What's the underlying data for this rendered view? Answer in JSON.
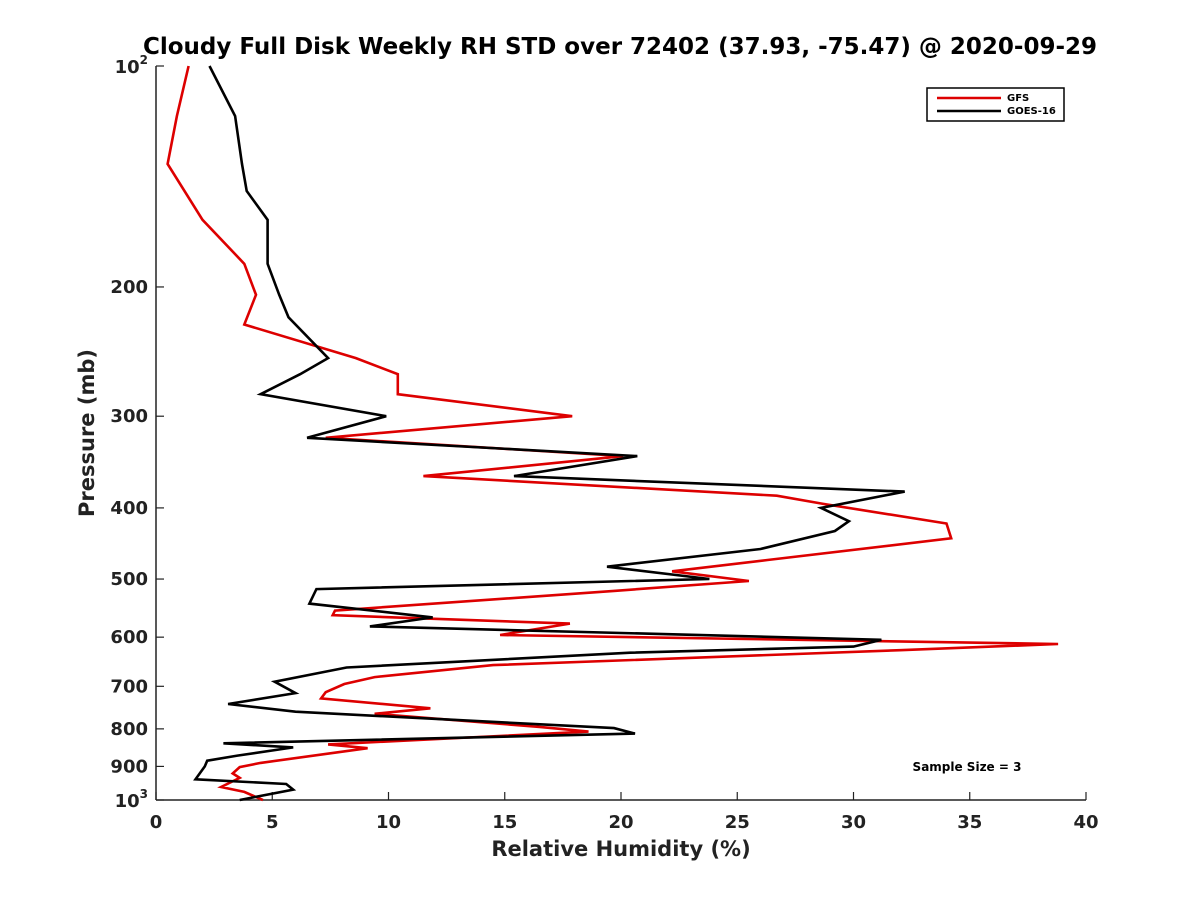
{
  "chart_data": {
    "type": "line",
    "title": "Cloudy Full Disk Weekly RH STD over 72402 (37.93, -75.47) @ 2020-09-29",
    "xlabel": "Relative Humidity (%)",
    "ylabel": "Pressure (mb)",
    "xlim": [
      0,
      40
    ],
    "ylim": [
      100,
      1000
    ],
    "yscale": "log",
    "yreversed": true,
    "x_ticks": [
      "0",
      "5",
      "10",
      "15",
      "20",
      "25",
      "30",
      "35",
      "40"
    ],
    "y_ticks": [
      {
        "value": 100,
        "label": "10",
        "sup": "2"
      },
      {
        "value": 200,
        "label": "200",
        "sup": ""
      },
      {
        "value": 300,
        "label": "300",
        "sup": ""
      },
      {
        "value": 400,
        "label": "400",
        "sup": ""
      },
      {
        "value": 500,
        "label": "500",
        "sup": ""
      },
      {
        "value": 600,
        "label": "600",
        "sup": ""
      },
      {
        "value": 700,
        "label": "700",
        "sup": ""
      },
      {
        "value": 800,
        "label": "800",
        "sup": ""
      },
      {
        "value": 900,
        "label": "900",
        "sup": ""
      },
      {
        "value": 1000,
        "label": "10",
        "sup": "3"
      }
    ],
    "grid": false,
    "legend_position": "top-right",
    "annotation": "Sample Size = 3",
    "series": [
      {
        "name": "GFS",
        "color": "#dd0000",
        "points": [
          [
            1.4,
            100
          ],
          [
            0.9,
            117
          ],
          [
            0.5,
            136
          ],
          [
            2.0,
            162
          ],
          [
            3.8,
            186
          ],
          [
            4.3,
            205
          ],
          [
            3.8,
            225
          ],
          [
            8.6,
            250
          ],
          [
            10.4,
            263
          ],
          [
            10.4,
            280
          ],
          [
            17.9,
            300
          ],
          [
            7.3,
            321
          ],
          [
            20.1,
            340
          ],
          [
            11.5,
            362
          ],
          [
            26.7,
            385
          ],
          [
            28.7,
            395
          ],
          [
            34.0,
            420
          ],
          [
            34.2,
            440
          ],
          [
            26.3,
            471
          ],
          [
            22.2,
            488
          ],
          [
            25.5,
            503
          ],
          [
            19.7,
            519
          ],
          [
            7.7,
            552
          ],
          [
            7.6,
            560
          ],
          [
            17.8,
            575
          ],
          [
            14.8,
            596
          ],
          [
            38.8,
            613
          ],
          [
            32.0,
            625
          ],
          [
            14.5,
            655
          ],
          [
            9.4,
            680
          ],
          [
            8.1,
            695
          ],
          [
            7.3,
            713
          ],
          [
            7.1,
            727
          ],
          [
            11.8,
            750
          ],
          [
            9.4,
            763
          ],
          [
            16.5,
            795
          ],
          [
            18.6,
            807
          ],
          [
            7.4,
            840
          ],
          [
            9.1,
            850
          ],
          [
            4.5,
            890
          ],
          [
            3.6,
            902
          ],
          [
            3.3,
            920
          ],
          [
            3.6,
            933
          ],
          [
            2.8,
            960
          ],
          [
            3.8,
            975
          ],
          [
            4.6,
            1000
          ]
        ]
      },
      {
        "name": "GOES-16",
        "color": "#000000",
        "points": [
          [
            2.3,
            100
          ],
          [
            3.4,
            117
          ],
          [
            3.7,
            136
          ],
          [
            3.9,
            148
          ],
          [
            4.8,
            162
          ],
          [
            4.8,
            186
          ],
          [
            5.3,
            205
          ],
          [
            5.7,
            220
          ],
          [
            7.4,
            250
          ],
          [
            6.2,
            263
          ],
          [
            4.5,
            280
          ],
          [
            9.9,
            300
          ],
          [
            6.5,
            321
          ],
          [
            20.7,
            340
          ],
          [
            15.4,
            362
          ],
          [
            32.2,
            380
          ],
          [
            28.6,
            400
          ],
          [
            29.8,
            417
          ],
          [
            29.2,
            430
          ],
          [
            26.0,
            455
          ],
          [
            19.4,
            481
          ],
          [
            23.8,
            500
          ],
          [
            6.9,
            516
          ],
          [
            6.6,
            540
          ],
          [
            11.9,
            564
          ],
          [
            9.2,
            580
          ],
          [
            31.2,
            605
          ],
          [
            30.0,
            618
          ],
          [
            20.4,
            630
          ],
          [
            8.2,
            660
          ],
          [
            5.1,
            690
          ],
          [
            6.0,
            715
          ],
          [
            3.1,
            740
          ],
          [
            6.0,
            758
          ],
          [
            19.7,
            798
          ],
          [
            20.6,
            812
          ],
          [
            2.9,
            837
          ],
          [
            5.9,
            848
          ],
          [
            3.5,
            870
          ],
          [
            2.2,
            884
          ],
          [
            2.1,
            900
          ],
          [
            1.7,
            937
          ],
          [
            5.6,
            951
          ],
          [
            5.9,
            968
          ],
          [
            3.6,
            1000
          ]
        ]
      }
    ]
  }
}
